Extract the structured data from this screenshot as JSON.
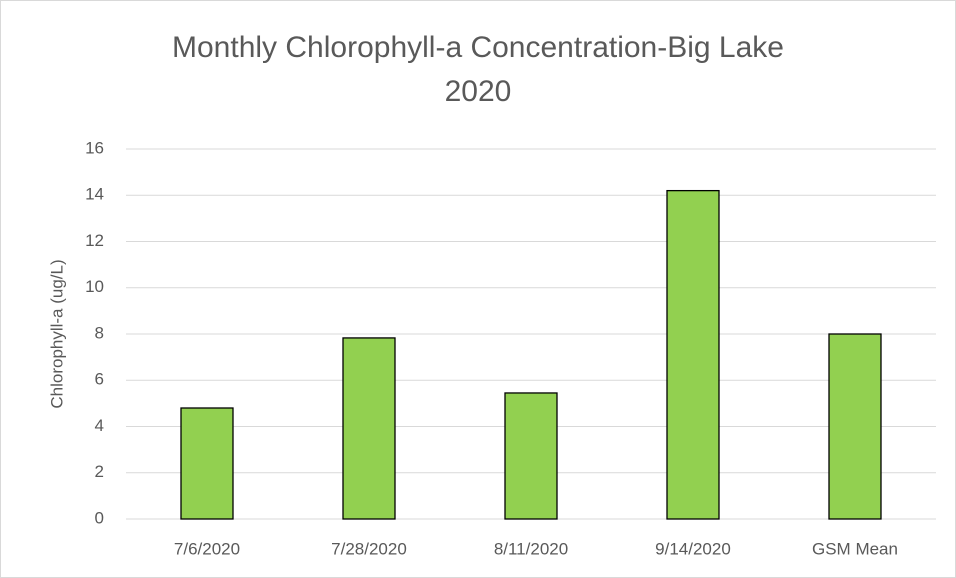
{
  "chart_data": {
    "type": "bar",
    "title": "Monthly Chlorophyll-a Concentration-Big Lake 2020",
    "y_label": "Chlorophyll-a (ug/L)",
    "categories": [
      "7/6/2020",
      "7/28/2020",
      "8/11/2020",
      "9/14/2020",
      "GSM Mean"
    ],
    "values": [
      4.8,
      7.83,
      5.45,
      14.2,
      8.0
    ],
    "color": "#92d050",
    "ylim": [
      0,
      16
    ],
    "yticks": [
      0,
      2,
      4,
      6,
      8,
      10,
      12,
      14,
      16
    ],
    "grid": true
  }
}
